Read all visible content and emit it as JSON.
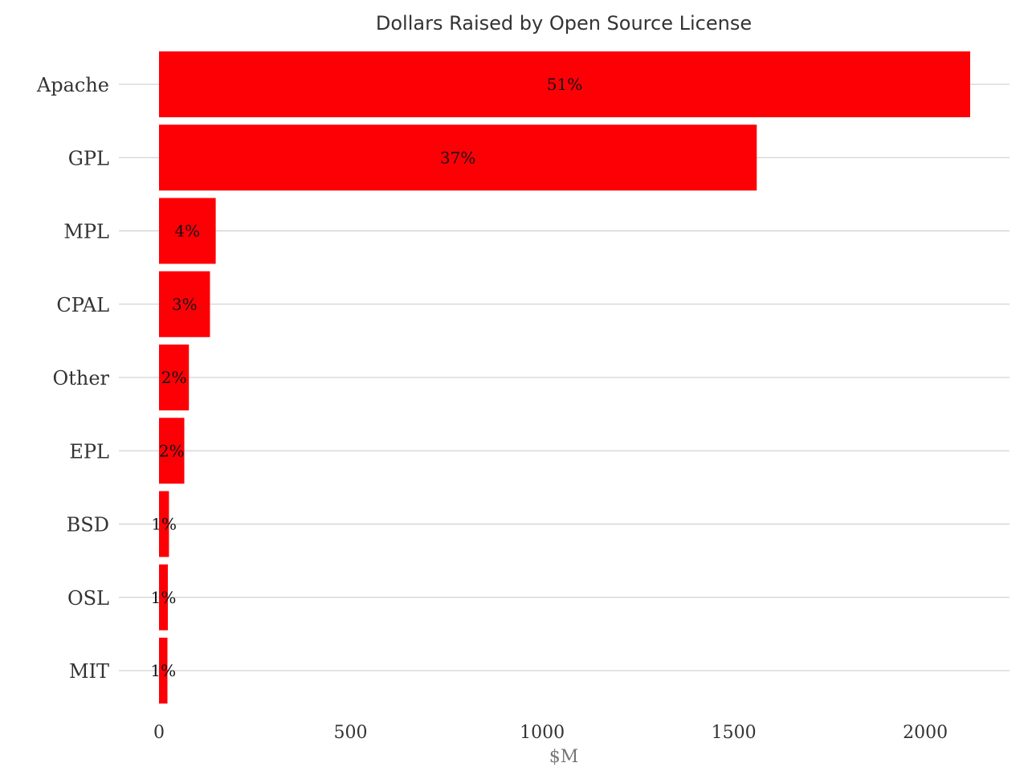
{
  "chart_data": {
    "type": "bar",
    "orientation": "horizontal",
    "title": "Dollars Raised by Open Source License",
    "xlabel": "$M",
    "ylabel": "",
    "categories": [
      "Apache",
      "GPL",
      "MPL",
      "CPAL",
      "Other",
      "EPL",
      "BSD",
      "OSL",
      "MIT"
    ],
    "values": [
      2117,
      1560,
      148,
      133,
      78,
      66,
      26,
      23,
      22
    ],
    "labels": [
      "51%",
      "37%",
      "4%",
      "3%",
      "2%",
      "2%",
      "1%",
      "1%",
      "1%"
    ],
    "xlim": [
      0,
      2200
    ],
    "xticks": [
      0,
      500,
      1000,
      1500,
      2000
    ],
    "xtick_labels": [
      "0",
      "500",
      "1000",
      "1500",
      "2000"
    ],
    "grid": true,
    "legend": "none",
    "bar_color": "#fc0006"
  }
}
